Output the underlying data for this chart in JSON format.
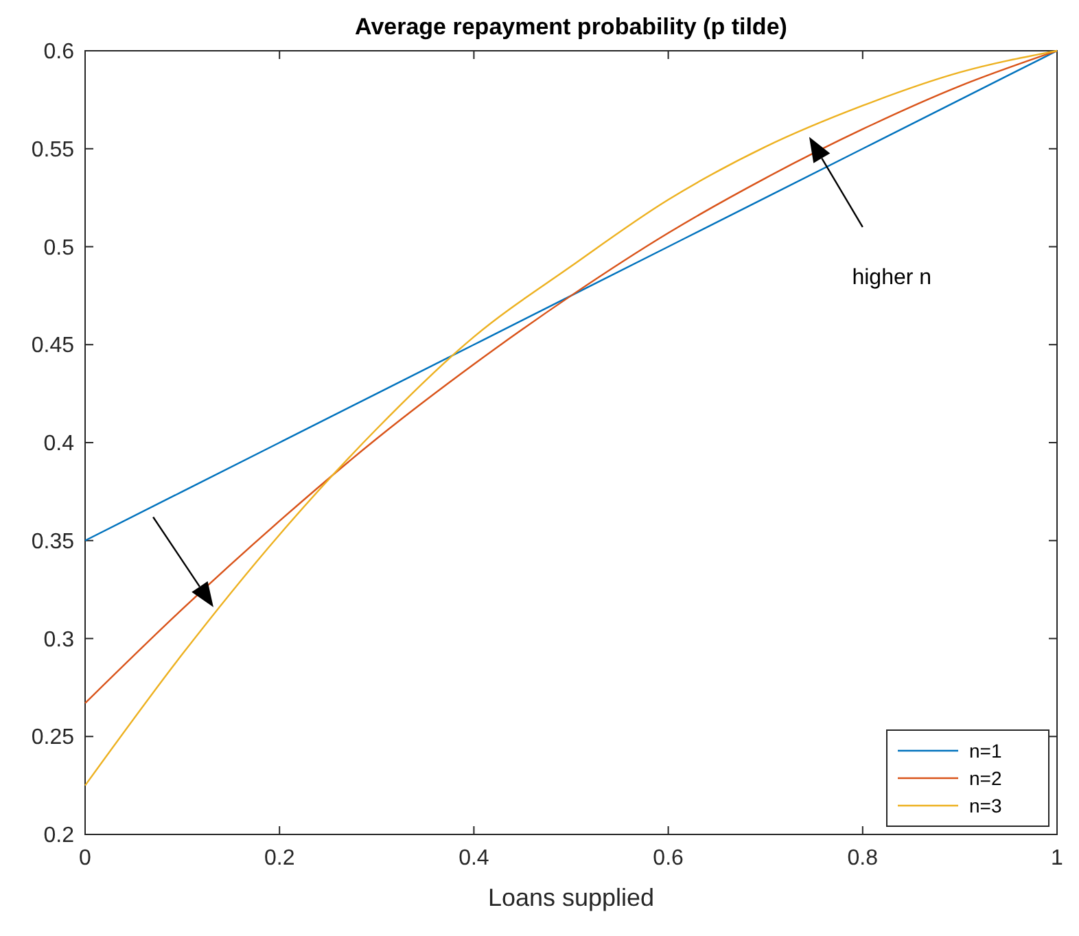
{
  "chart_data": {
    "type": "line",
    "title": "Average repayment probability (p tilde)",
    "xlabel": "Loans supplied",
    "x": [
      0,
      0.1,
      0.2,
      0.3,
      0.4,
      0.5,
      0.6,
      0.7,
      0.8,
      0.9,
      1
    ],
    "series": [
      {
        "name": "n=1",
        "color": "#0072bd",
        "values": [
          0.35,
          0.375,
          0.4,
          0.425,
          0.45,
          0.475,
          0.5,
          0.525,
          0.55,
          0.575,
          0.6
        ]
      },
      {
        "name": "n=2",
        "color": "#d95319",
        "values": [
          0.267,
          0.315,
          0.36,
          0.402,
          0.44,
          0.475,
          0.507,
          0.535,
          0.56,
          0.582,
          0.6
        ]
      },
      {
        "name": "n=3",
        "color": "#edb120",
        "values": [
          0.225,
          0.292,
          0.353,
          0.407,
          0.454,
          0.49,
          0.524,
          0.551,
          0.572,
          0.589,
          0.6
        ]
      }
    ],
    "xlim": [
      0,
      1
    ],
    "xticks": [
      0,
      0.2,
      0.4,
      0.6,
      0.8,
      1
    ],
    "ylim": [
      0.2,
      0.6
    ],
    "yticks": [
      0.2,
      0.25,
      0.3,
      0.35,
      0.4,
      0.45,
      0.5,
      0.55,
      0.6
    ],
    "annotations": [
      "higher n"
    ],
    "legend": "bottom right",
    "grid": false,
    "line_style": "solid"
  }
}
